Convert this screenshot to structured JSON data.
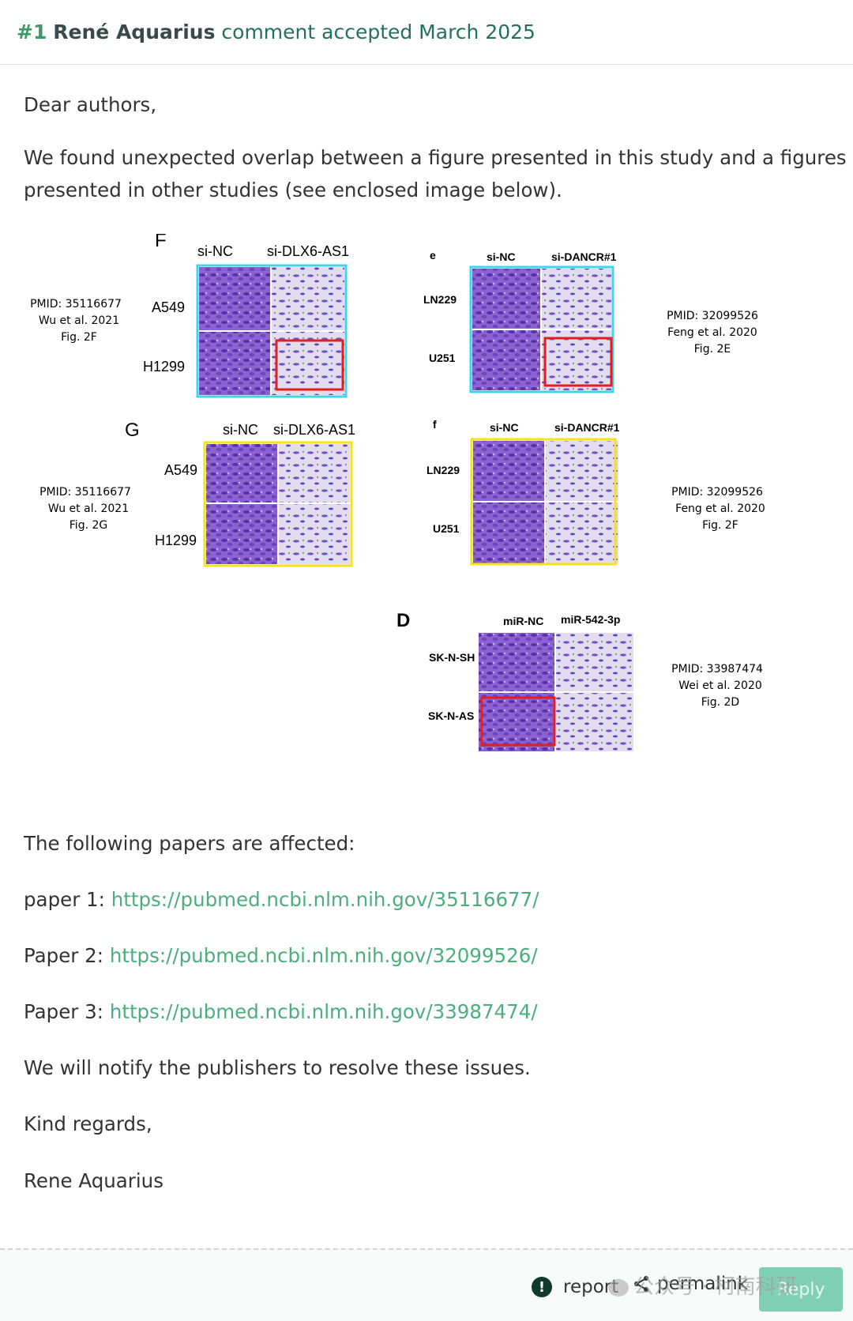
{
  "comment": {
    "number": "#1",
    "author": "René Aquarius",
    "status": "comment accepted March 2025"
  },
  "body": {
    "greeting": "Dear authors,",
    "intro_line1": "We found unexpected overlap between a figure presented in this study and a figures",
    "intro_line2": "presented in other studies (see enclosed image below).",
    "affected": "The following papers are affected:",
    "papers": [
      {
        "label": "paper 1:",
        "url": "https://pubmed.ncbi.nlm.nih.gov/35116677/"
      },
      {
        "label": "Paper 2:",
        "url": "https://pubmed.ncbi.nlm.nih.gov/32099526/"
      },
      {
        "label": "Paper 3:",
        "url": "https://pubmed.ncbi.nlm.nih.gov/33987474/"
      }
    ],
    "notify": "We will notify the publishers to resolve these issues.",
    "regards": "Kind regards,",
    "signature": "Rene Aquarius"
  },
  "figure": {
    "panelF": {
      "letter": "F",
      "col1": "si-NC",
      "col2": "si-DLX6-AS1",
      "row1": "A549",
      "row2": "H1299",
      "pmid": "PMID: 35116677",
      "ref": "Wu et al. 2021",
      "fig": "Fig. 2F"
    },
    "panelE": {
      "letter": "e",
      "col1": "si-NC",
      "col2": "si-DANCR#1",
      "row1": "LN229",
      "row2": "U251",
      "pmid": "PMID: 32099526",
      "ref": "Feng et al. 2020",
      "fig": "Fig. 2E"
    },
    "panelG": {
      "letter": "G",
      "col1": "si-NC",
      "col2": "si-DLX6-AS1",
      "row1": "A549",
      "row2": "H1299",
      "pmid": "PMID: 35116677",
      "ref": "Wu et al. 2021",
      "fig": "Fig. 2G"
    },
    "panelFf": {
      "letter": "f",
      "col1": "si-NC",
      "col2": "si-DANCR#1",
      "row1": "LN229",
      "row2": "U251",
      "pmid": "PMID: 32099526",
      "ref": "Feng et al. 2020",
      "fig": "Fig. 2F"
    },
    "panelD": {
      "letter": "D",
      "col1": "miR-NC",
      "col2": "miR-542-3p",
      "row1": "SK-N-SH",
      "row2": "SK-N-AS",
      "pmid": "PMID: 33987474",
      "ref": "Wei et al. 2020",
      "fig": "Fig. 2D"
    },
    "colors": {
      "cyan": "#3fd6e8",
      "yellow": "#f3e21c",
      "red": "#e41e1e",
      "stainA": "#7a4fc9",
      "stainB": "#cfc8e2"
    }
  },
  "footer": {
    "report_label": "report",
    "permalink_label": "permalink",
    "reply_label": "Reply",
    "watermark_text": "公众号 · 柯南科研",
    "icons": {
      "report": "exclamation-circle-icon",
      "permalink": "share-icon"
    }
  }
}
